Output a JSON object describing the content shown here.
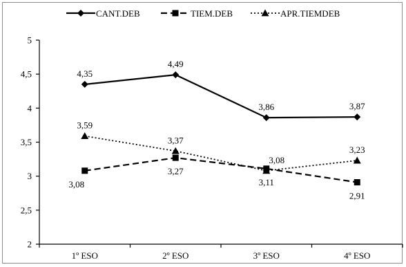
{
  "chart_data": {
    "type": "line",
    "title": "",
    "xlabel": "",
    "ylabel": "",
    "categories": [
      "1º ESO",
      "2º ESO",
      "3º ESO",
      "4º ESO"
    ],
    "y_ticks": [
      "2",
      "2,5",
      "3",
      "3,5",
      "4",
      "4,5",
      "5"
    ],
    "ylim": [
      2,
      5
    ],
    "grid": false,
    "legend_position": "top",
    "series": [
      {
        "name": "CANT.DEB",
        "values": [
          4.35,
          4.49,
          3.86,
          3.87
        ],
        "labels": [
          "4,35",
          "4,49",
          "3,86",
          "3,87"
        ],
        "line_style": "solid",
        "marker": "diamond",
        "label_position": "above"
      },
      {
        "name": "TIEM.DEB",
        "values": [
          3.08,
          3.27,
          3.11,
          2.91
        ],
        "labels": [
          "3,08",
          "3,27",
          "3,11",
          "2,91"
        ],
        "line_style": "dashed",
        "marker": "square",
        "label_position": "below"
      },
      {
        "name": "APR.TIEMDEB",
        "values": [
          3.59,
          3.37,
          3.08,
          3.23
        ],
        "labels": [
          "3,59",
          "3,37",
          "3,08",
          "3,23"
        ],
        "line_style": "dotted",
        "marker": "triangle",
        "label_position": "above"
      }
    ]
  }
}
